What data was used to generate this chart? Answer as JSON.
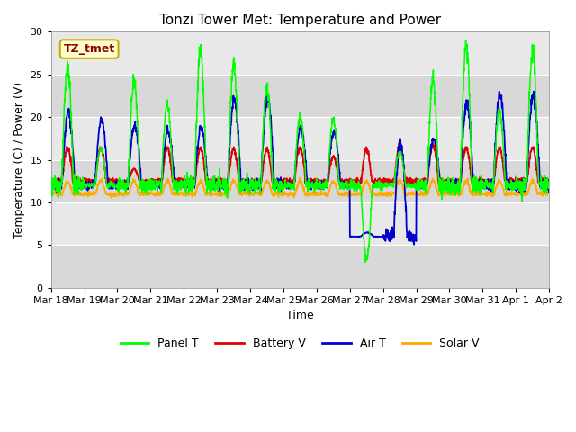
{
  "title": "Tonzi Tower Met: Temperature and Power",
  "xlabel": "Time",
  "ylabel": "Temperature (C) / Power (V)",
  "ylim": [
    0,
    30
  ],
  "colors": {
    "panel_t": "#00ff00",
    "battery_v": "#dd0000",
    "air_t": "#0000cc",
    "solar_v": "#ffaa00"
  },
  "legend_labels": [
    "Panel T",
    "Battery V",
    "Air T",
    "Solar V"
  ],
  "annotation_text": "TZ_tmet",
  "annotation_bg": "#ffffcc",
  "annotation_border": "#ccaa00",
  "annotation_text_color": "#880000",
  "x_tick_labels": [
    "Mar 18",
    "Mar 19",
    "Mar 20",
    "Mar 21",
    "Mar 22",
    "Mar 23",
    "Mar 24",
    "Mar 25",
    "Mar 26",
    "Mar 27",
    "Mar 28",
    "Mar 29",
    "Mar 30",
    "Mar 31",
    "Apr 1",
    "Apr 2"
  ],
  "title_fontsize": 11,
  "axis_fontsize": 9,
  "tick_fontsize": 8,
  "legend_fontsize": 9,
  "band_colors": [
    "#d8d8d8",
    "#e8e8e8"
  ],
  "grid_color": "#ffffff"
}
